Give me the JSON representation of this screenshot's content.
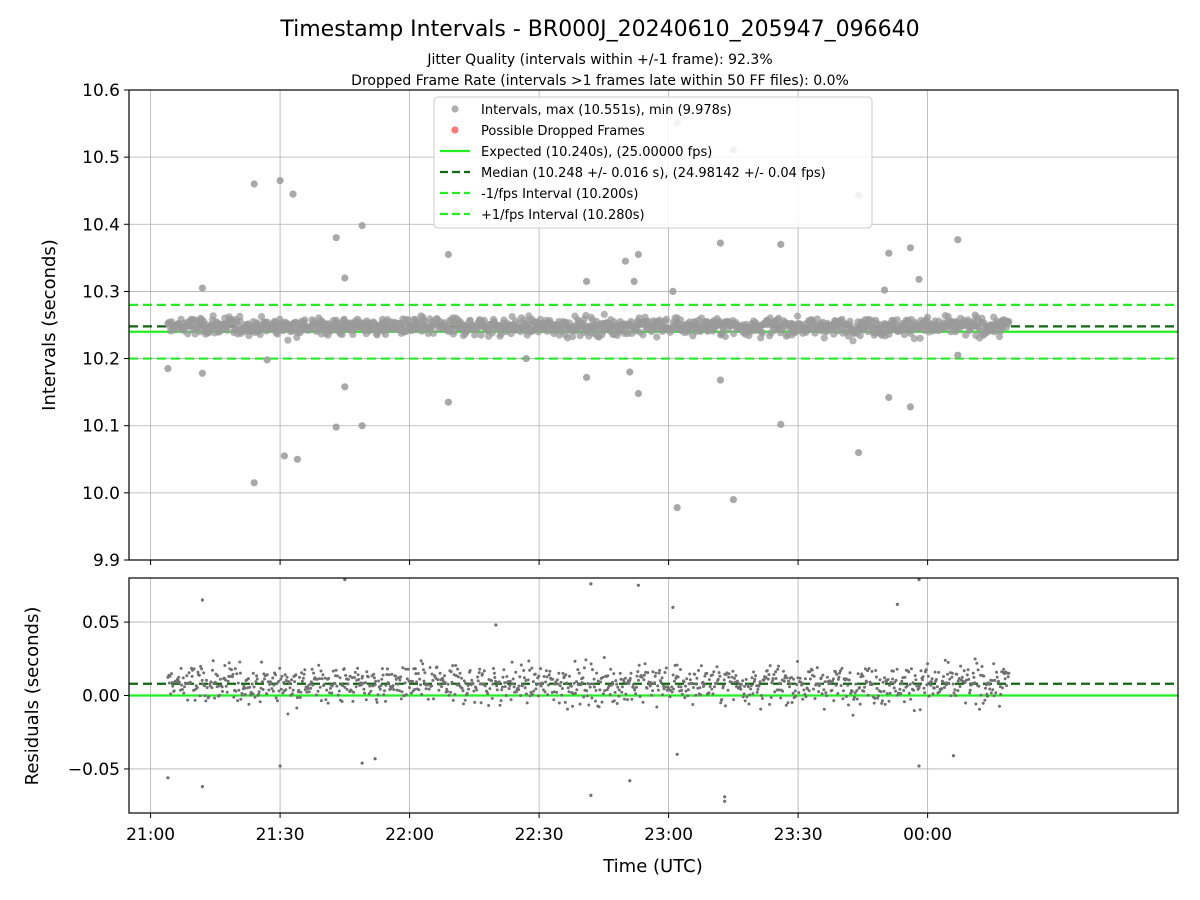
{
  "figure": {
    "title": "Timestamp Intervals - BR000J_20240610_205947_096640",
    "subtitle_1": "Jitter Quality (intervals within +/-1 frame): 92.3%",
    "subtitle_2": "Dropped Frame Rate (intervals >1 frames late within 50 FF files): 0.0%"
  },
  "colors": {
    "points": "#9a9a9a",
    "residual_points": "#707070",
    "dropped": "#ff5555",
    "expected": "#22ee22",
    "median": "#116611",
    "fps_interval": "#22ee22",
    "grid": "#b0b0b0"
  },
  "chart_data": [
    {
      "type": "scatter",
      "name": "intervals",
      "ylabel": "Intervals (seconds)",
      "ylim": [
        9.9,
        10.6
      ],
      "yticks": [
        "9.9",
        "10.0",
        "10.1",
        "10.2",
        "10.3",
        "10.4",
        "10.5",
        "10.6"
      ],
      "xlim": [
        "20:55",
        "00:58"
      ],
      "grid": true,
      "legend_position": "upper-center",
      "legend": [
        {
          "label": "Intervals, max (10.551s), min (9.978s)",
          "kind": "dot",
          "color": "#9a9a9a"
        },
        {
          "label": "Possible Dropped Frames",
          "kind": "dot",
          "color": "#ff5555"
        },
        {
          "label": "Expected (10.240s), (25.00000 fps)",
          "kind": "solid",
          "color": "#22ee22"
        },
        {
          "label": "Median (10.248 +/- 0.016 s), (24.98142 +/- 0.04 fps)",
          "kind": "dashed",
          "color": "#116611"
        },
        {
          "label": "-1/fps Interval (10.200s)",
          "kind": "dashed",
          "color": "#22ee22"
        },
        {
          "label": "+1/fps Interval (10.280s)",
          "kind": "dashed",
          "color": "#22ee22"
        }
      ],
      "lines": {
        "expected": 10.24,
        "median": 10.248,
        "minus_fps": 10.2,
        "plus_fps": 10.28
      },
      "points_range": {
        "start": "21:04",
        "end": "00:19",
        "count": 1150
      },
      "outliers": [
        {
          "x": "21:04",
          "y": 10.185
        },
        {
          "x": "21:12",
          "y": 10.305
        },
        {
          "x": "21:12",
          "y": 10.178
        },
        {
          "x": "21:24",
          "y": 10.46
        },
        {
          "x": "21:24",
          "y": 10.015
        },
        {
          "x": "21:30",
          "y": 10.465
        },
        {
          "x": "21:31",
          "y": 10.055
        },
        {
          "x": "21:33",
          "y": 10.445
        },
        {
          "x": "21:34",
          "y": 10.05
        },
        {
          "x": "21:43",
          "y": 10.38
        },
        {
          "x": "21:43",
          "y": 10.098
        },
        {
          "x": "21:45",
          "y": 10.32
        },
        {
          "x": "21:45",
          "y": 10.158
        },
        {
          "x": "21:49",
          "y": 10.398
        },
        {
          "x": "21:49",
          "y": 10.1
        },
        {
          "x": "22:09",
          "y": 10.355
        },
        {
          "x": "22:09",
          "y": 10.135
        },
        {
          "x": "22:41",
          "y": 10.315
        },
        {
          "x": "22:41",
          "y": 10.172
        },
        {
          "x": "22:50",
          "y": 10.345
        },
        {
          "x": "22:51",
          "y": 10.18
        },
        {
          "x": "22:53",
          "y": 10.355
        },
        {
          "x": "22:53",
          "y": 10.148
        },
        {
          "x": "22:52",
          "y": 10.315
        },
        {
          "x": "23:01",
          "y": 10.3
        },
        {
          "x": "23:02",
          "y": 10.551
        },
        {
          "x": "23:02",
          "y": 9.978
        },
        {
          "x": "23:12",
          "y": 10.372
        },
        {
          "x": "23:12",
          "y": 10.168
        },
        {
          "x": "23:15",
          "y": 10.511
        },
        {
          "x": "23:15",
          "y": 9.99
        },
        {
          "x": "23:26",
          "y": 10.37
        },
        {
          "x": "23:26",
          "y": 10.102
        },
        {
          "x": "23:44",
          "y": 10.443
        },
        {
          "x": "23:44",
          "y": 10.06
        },
        {
          "x": "23:51",
          "y": 10.357
        },
        {
          "x": "23:51",
          "y": 10.142
        },
        {
          "x": "23:56",
          "y": 10.365
        },
        {
          "x": "23:56",
          "y": 10.128
        },
        {
          "x": "23:58",
          "y": 10.318
        },
        {
          "x": "00:07",
          "y": 10.377
        },
        {
          "x": "00:07",
          "y": 10.205
        },
        {
          "x": "23:50",
          "y": 10.302
        },
        {
          "x": "21:27",
          "y": 10.198
        },
        {
          "x": "22:27",
          "y": 10.2
        }
      ]
    },
    {
      "type": "scatter",
      "name": "residuals",
      "ylabel": "Residuals (seconds)",
      "xlabel": "Time (UTC)",
      "ylim": [
        -0.08,
        0.08
      ],
      "yticks": [
        "0.05",
        "0.00",
        "−0.05"
      ],
      "xticks": [
        "21:00",
        "21:30",
        "22:00",
        "22:30",
        "23:00",
        "23:30",
        "00:00"
      ],
      "grid": true,
      "lines": {
        "zero": 0.0,
        "median_offset": 0.008
      },
      "points_range": {
        "start": "21:04",
        "end": "00:19",
        "count": 1150
      },
      "outliers": [
        {
          "x": "21:04",
          "y": -0.056
        },
        {
          "x": "21:12",
          "y": 0.065
        },
        {
          "x": "21:12",
          "y": -0.062
        },
        {
          "x": "21:30",
          "y": -0.048
        },
        {
          "x": "21:45",
          "y": 0.079
        },
        {
          "x": "21:49",
          "y": -0.046
        },
        {
          "x": "22:42",
          "y": 0.076
        },
        {
          "x": "22:42",
          "y": -0.068
        },
        {
          "x": "22:53",
          "y": 0.075
        },
        {
          "x": "22:51",
          "y": -0.058
        },
        {
          "x": "23:01",
          "y": 0.06
        },
        {
          "x": "23:13",
          "y": -0.072
        },
        {
          "x": "23:13",
          "y": -0.069
        },
        {
          "x": "23:02",
          "y": -0.04
        },
        {
          "x": "23:53",
          "y": 0.062
        },
        {
          "x": "23:58",
          "y": 0.079
        },
        {
          "x": "23:58",
          "y": -0.048
        },
        {
          "x": "00:06",
          "y": -0.041
        },
        {
          "x": "22:20",
          "y": 0.048
        },
        {
          "x": "21:52",
          "y": -0.043
        }
      ]
    }
  ]
}
